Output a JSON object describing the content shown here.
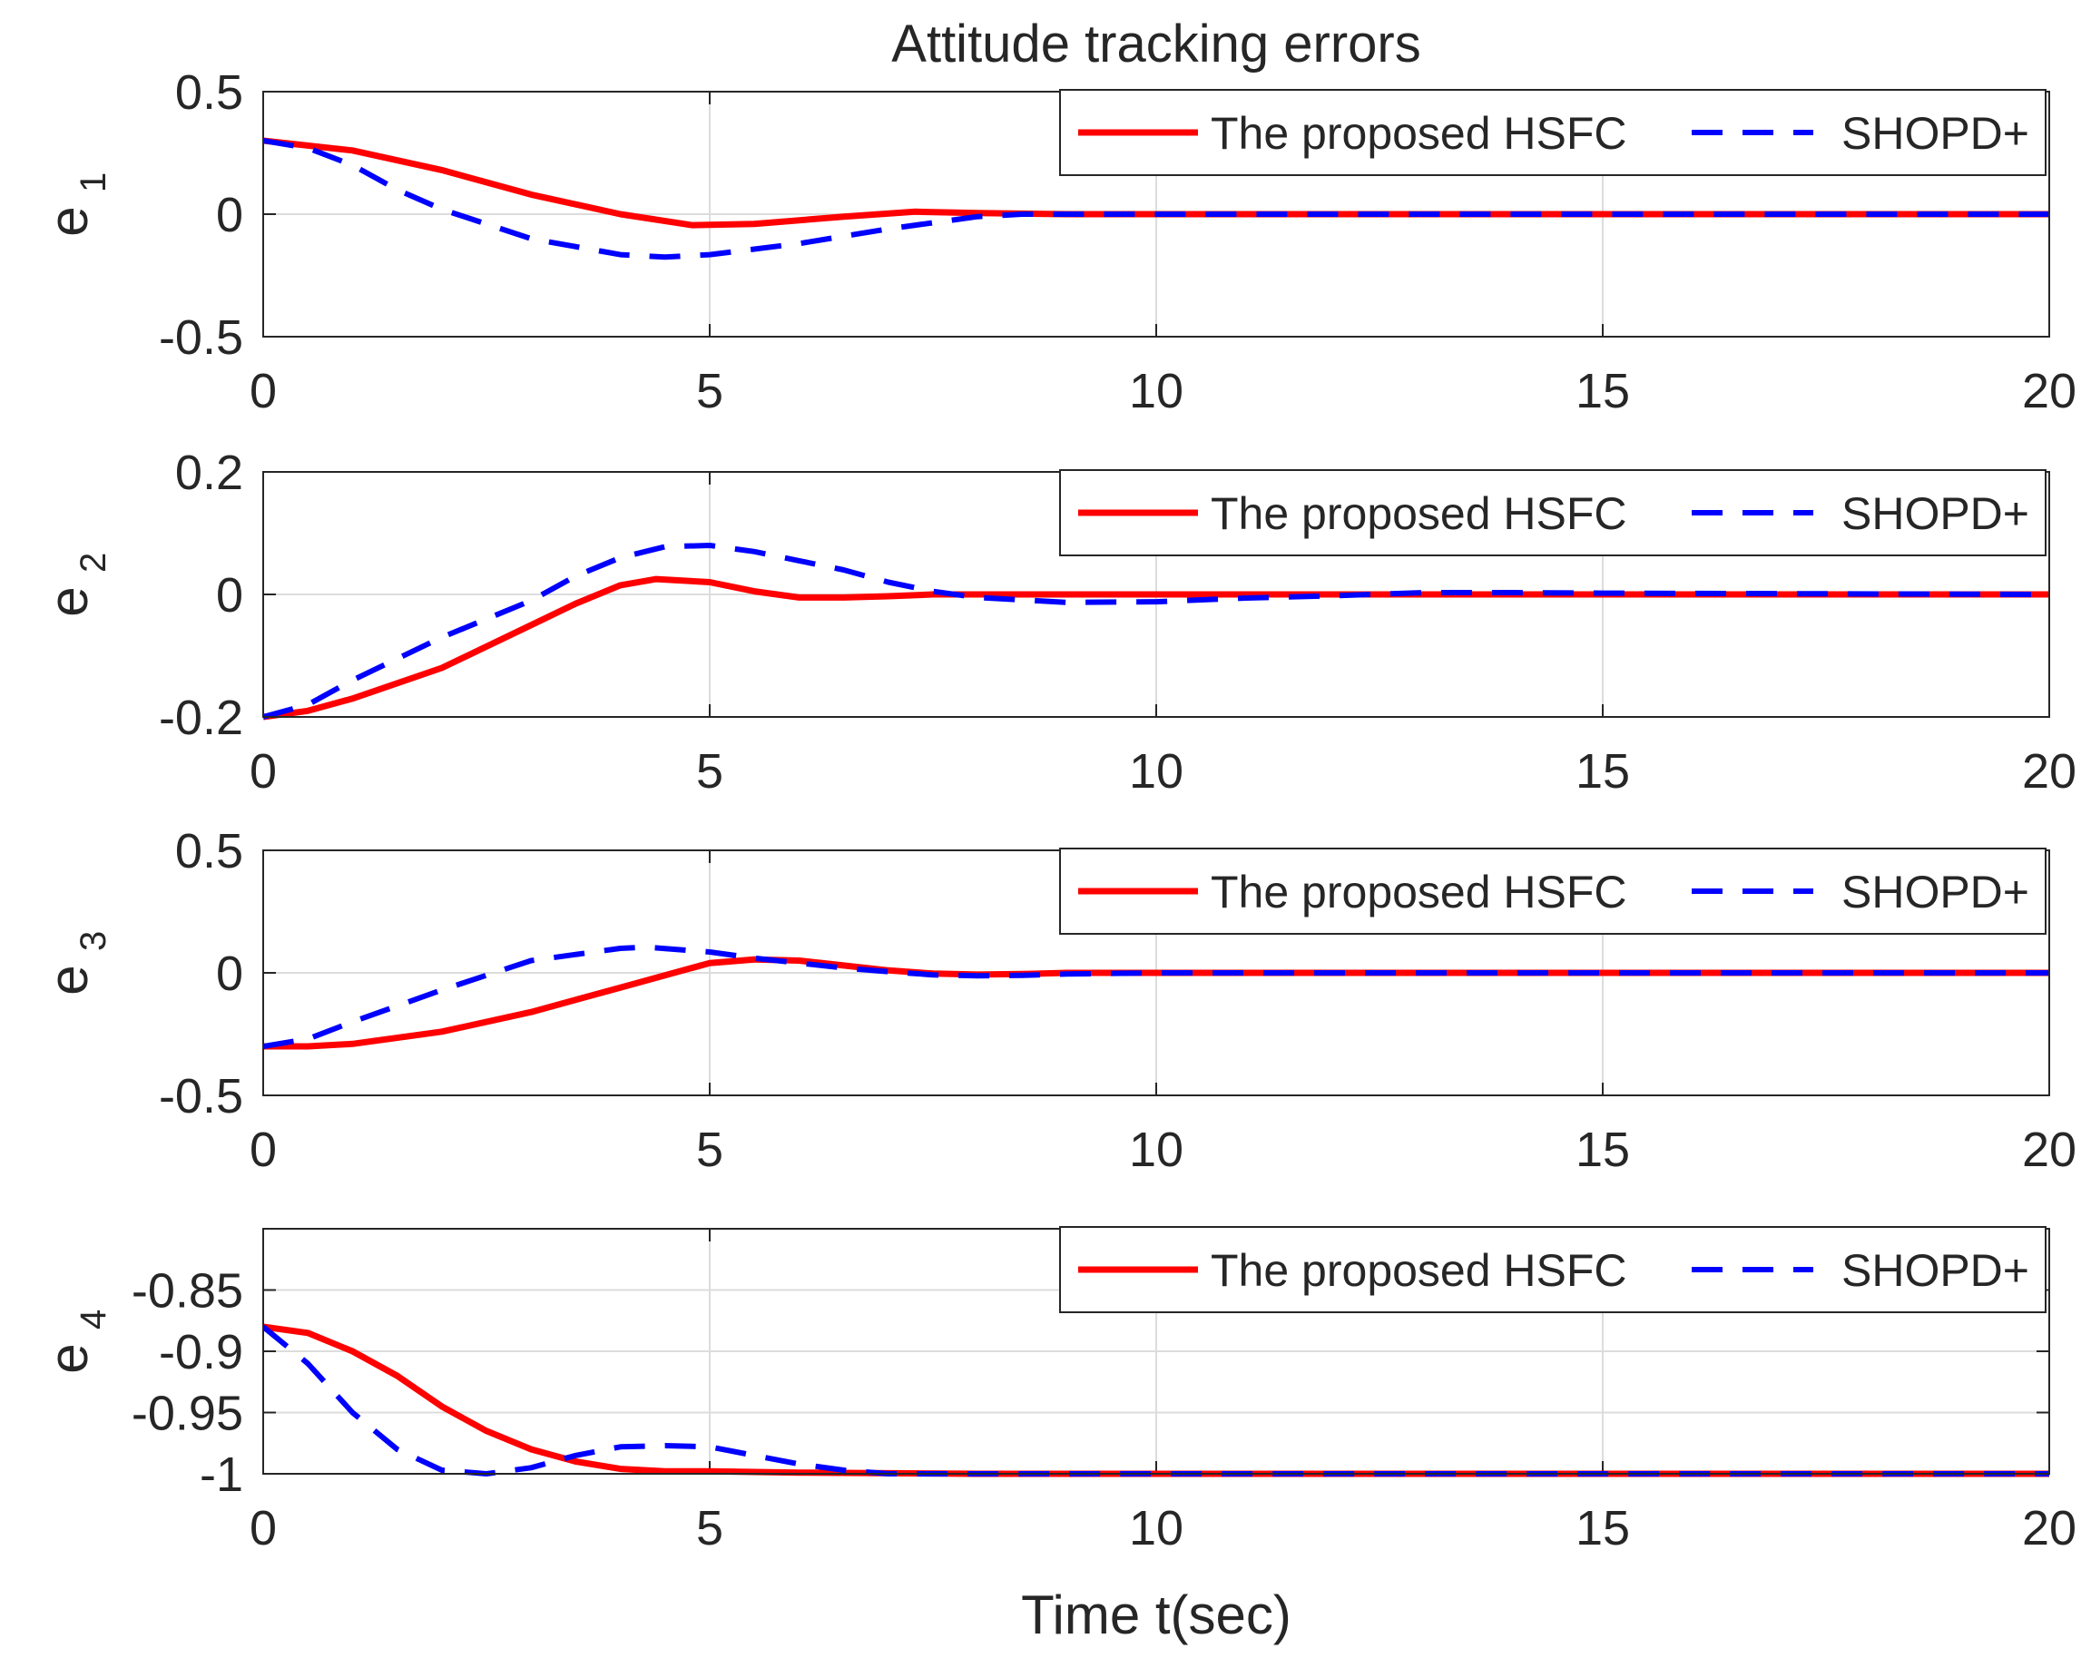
{
  "chart_data": [
    {
      "type": "line",
      "id": "e1",
      "title": "Attitude tracking errors",
      "ylabel": "e",
      "ylabel_sub": "1",
      "xlabel": "",
      "xlim": [
        0,
        20
      ],
      "ylim": [
        -0.5,
        0.5
      ],
      "xticks": [
        "0",
        "5",
        "10",
        "15",
        "20"
      ],
      "yticks": [
        "-0.5",
        "0",
        "0.5"
      ],
      "grid": true,
      "legend_position": "top-right",
      "series": [
        {
          "name": "The proposed HSFC",
          "style": "solid",
          "x": [
            0,
            1,
            2,
            3,
            4,
            4.8,
            5.5,
            6.5,
            7.3,
            8,
            9,
            10,
            12,
            15,
            20
          ],
          "y": [
            0.3,
            0.26,
            0.18,
            0.08,
            0.0,
            -0.045,
            -0.04,
            -0.01,
            0.01,
            0.005,
            0,
            0,
            0,
            0,
            0
          ]
        },
        {
          "name": "SHOPD+",
          "style": "dashed",
          "x": [
            0,
            0.5,
            1,
            1.5,
            2,
            3,
            4,
            4.5,
            5,
            6,
            7,
            8,
            8.5,
            9,
            10,
            12,
            15,
            20
          ],
          "y": [
            0.3,
            0.27,
            0.2,
            0.1,
            0.02,
            -0.1,
            -0.165,
            -0.175,
            -0.165,
            -0.12,
            -0.06,
            -0.01,
            0,
            0,
            0,
            0,
            0,
            0
          ]
        }
      ]
    },
    {
      "type": "line",
      "id": "e2",
      "ylabel": "e",
      "ylabel_sub": "2",
      "xlabel": "",
      "xlim": [
        0,
        20
      ],
      "ylim": [
        -0.2,
        0.2
      ],
      "xticks": [
        "0",
        "5",
        "10",
        "15",
        "20"
      ],
      "yticks": [
        "-0.2",
        "0",
        "0.2"
      ],
      "grid": true,
      "legend_position": "top-right",
      "series": [
        {
          "name": "The proposed HSFC",
          "style": "solid",
          "x": [
            0,
            0.5,
            1,
            2,
            3,
            3.5,
            4,
            4.4,
            5,
            5.5,
            6,
            6.5,
            7,
            7.5,
            8,
            10,
            12,
            15,
            20
          ],
          "y": [
            -0.2,
            -0.19,
            -0.17,
            -0.12,
            -0.05,
            -0.015,
            0.015,
            0.025,
            0.02,
            0.005,
            -0.005,
            -0.005,
            -0.003,
            0,
            0,
            0,
            0,
            0,
            0
          ]
        },
        {
          "name": "SHOPD+",
          "style": "dashed",
          "x": [
            0,
            0.5,
            1,
            2,
            3,
            3.5,
            4,
            4.5,
            5,
            5.5,
            6,
            6.5,
            7,
            7.5,
            8,
            9,
            10,
            11,
            12,
            13,
            14,
            15,
            20
          ],
          "y": [
            -0.2,
            -0.18,
            -0.14,
            -0.07,
            -0.01,
            0.03,
            0.06,
            0.078,
            0.08,
            0.07,
            0.055,
            0.04,
            0.02,
            0.005,
            -0.005,
            -0.013,
            -0.012,
            -0.006,
            -0.002,
            0.003,
            0.003,
            0.002,
            0
          ]
        }
      ]
    },
    {
      "type": "line",
      "id": "e3",
      "ylabel": "e",
      "ylabel_sub": "3",
      "xlabel": "",
      "xlim": [
        0,
        20
      ],
      "ylim": [
        -0.5,
        0.5
      ],
      "xticks": [
        "0",
        "5",
        "10",
        "15",
        "20"
      ],
      "yticks": [
        "-0.5",
        "0",
        "0.5"
      ],
      "grid": true,
      "legend_position": "top-right",
      "series": [
        {
          "name": "The proposed HSFC",
          "style": "solid",
          "x": [
            0,
            0.5,
            1,
            2,
            3,
            4,
            5,
            5.5,
            6,
            6.5,
            7,
            7.5,
            8,
            8.5,
            9,
            10,
            12,
            15,
            20
          ],
          "y": [
            -0.3,
            -0.3,
            -0.29,
            -0.24,
            -0.16,
            -0.06,
            0.04,
            0.055,
            0.05,
            0.03,
            0.01,
            -0.003,
            -0.007,
            -0.005,
            0,
            0,
            0,
            0,
            0
          ]
        },
        {
          "name": "SHOPD+",
          "style": "dashed",
          "x": [
            0,
            0.5,
            1,
            2,
            3,
            4,
            4.3,
            5,
            5.5,
            6,
            6.5,
            7,
            7.5,
            8,
            8.5,
            9,
            10,
            12,
            15,
            20
          ],
          "y": [
            -0.3,
            -0.27,
            -0.2,
            -0.07,
            0.05,
            0.1,
            0.105,
            0.085,
            0.06,
            0.04,
            0.02,
            0.005,
            -0.008,
            -0.012,
            -0.01,
            -0.005,
            0,
            0,
            0,
            0
          ]
        }
      ]
    },
    {
      "type": "line",
      "id": "e4",
      "ylabel": "e",
      "ylabel_sub": "4",
      "xlabel": "Time t(sec)",
      "xlim": [
        0,
        20
      ],
      "ylim": [
        -1,
        -0.8
      ],
      "xticks": [
        "0",
        "5",
        "10",
        "15",
        "20"
      ],
      "yticks": [
        "-1",
        "-0.95",
        "-0.9",
        "-0.85"
      ],
      "ytick_values": [
        -1,
        -0.95,
        -0.9,
        -0.85
      ],
      "grid": true,
      "legend_position": "top-right",
      "series": [
        {
          "name": "The proposed HSFC",
          "style": "solid",
          "x": [
            0,
            0.5,
            1,
            1.5,
            2,
            2.5,
            3,
            3.5,
            4,
            4.5,
            5,
            6,
            8,
            10,
            15,
            20
          ],
          "y": [
            -0.88,
            -0.885,
            -0.9,
            -0.92,
            -0.945,
            -0.965,
            -0.98,
            -0.99,
            -0.996,
            -0.998,
            -0.998,
            -0.999,
            -1,
            -1,
            -1,
            -1
          ]
        },
        {
          "name": "SHOPD+",
          "style": "dashed",
          "x": [
            0,
            0.5,
            1,
            1.5,
            2,
            2.5,
            3,
            3.5,
            4,
            4.5,
            5,
            5.5,
            6,
            6.5,
            7,
            8,
            10,
            15,
            20
          ],
          "y": [
            -0.88,
            -0.91,
            -0.95,
            -0.98,
            -0.997,
            -1,
            -0.995,
            -0.985,
            -0.978,
            -0.977,
            -0.978,
            -0.985,
            -0.992,
            -0.997,
            -1,
            -1,
            -1,
            -1,
            -1
          ]
        }
      ]
    }
  ],
  "colors": {
    "hsfc": "#ff0000",
    "shopd": "#0000ff",
    "axis": "#262626",
    "grid": "#dcdcdc"
  }
}
